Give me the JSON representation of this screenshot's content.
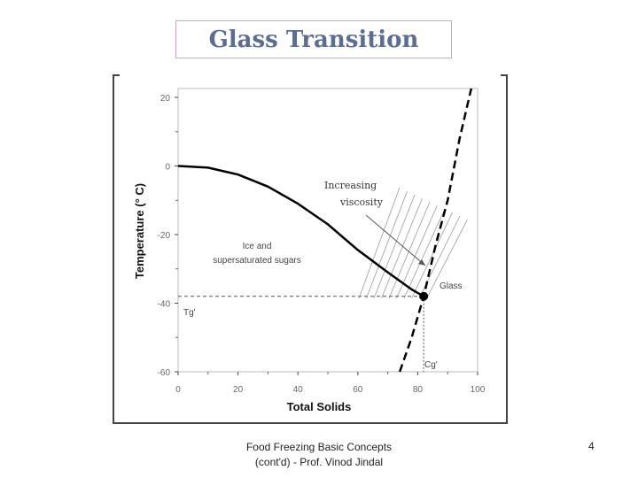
{
  "slide": {
    "title": "Glass Transition",
    "footer_line1": "Food Freezing Basic Concepts",
    "footer_line2": "(cont'd) - Prof. Vinod Jindal",
    "page_number": "4"
  },
  "chart_data": {
    "type": "line",
    "xlabel": "Total Solids",
    "ylabel": "Temperature (° C)",
    "xlim": [
      0,
      100
    ],
    "ylim": [
      -60,
      20
    ],
    "x_ticks": [
      "0",
      "20",
      "40",
      "60",
      "80",
      "100"
    ],
    "y_ticks": [
      "20",
      "0",
      "-20",
      "-40",
      "-60"
    ],
    "series": [
      {
        "id": "freezing-curve",
        "style": "solid",
        "color": "#000000",
        "x": [
          0,
          10,
          20,
          30,
          40,
          50,
          60,
          70,
          78,
          82
        ],
        "y": [
          0,
          -0.5,
          -2.5,
          -6,
          -11,
          -17,
          -24.5,
          -31,
          -36,
          -38
        ]
      },
      {
        "id": "glass-transition-curve",
        "style": "dashed",
        "color": "#000000",
        "x": [
          74,
          78,
          82,
          86,
          90,
          94,
          98
        ],
        "y": [
          -60,
          -50,
          -38,
          -23,
          -10,
          8,
          23
        ]
      }
    ],
    "reference_lines": {
      "tg_prime": -38,
      "cg_prime": 82
    },
    "point": {
      "x": 82,
      "y": -38,
      "label": "Glass"
    },
    "annotations": {
      "region_label_line1": "Ice and",
      "region_label_line2": "supersaturated sugars",
      "viscosity_line1": "Increasing",
      "viscosity_line2": "viscosity",
      "tg_label": "Tg'",
      "cg_label": "Cg'"
    },
    "grid": false,
    "legend": "none"
  }
}
